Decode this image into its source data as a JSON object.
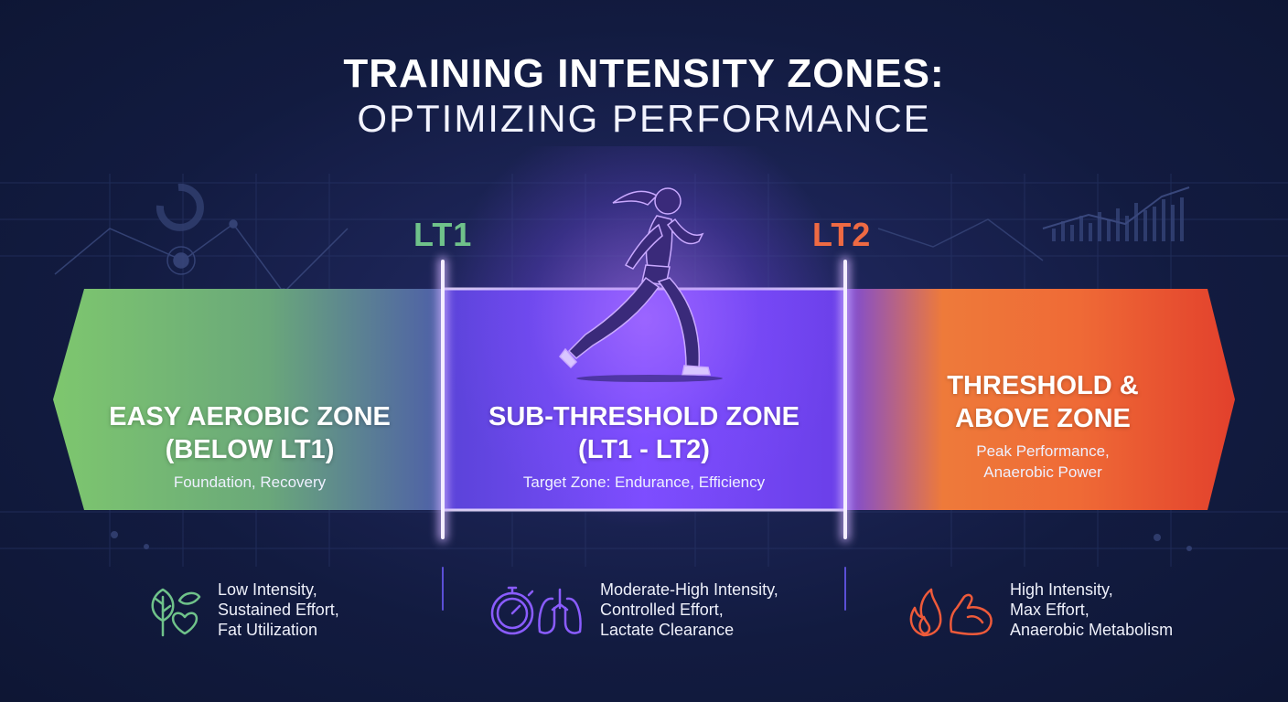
{
  "title": {
    "line1": "TRAINING INTENSITY ZONES:",
    "line2": "OPTIMIZING PERFORMANCE"
  },
  "markers": {
    "lt1": "LT1",
    "lt2": "LT2"
  },
  "zones": [
    {
      "title_line1": "EASY AEROBIC ZONE",
      "title_line2": "(BELOW LT1)",
      "subtitle_line1": "Foundation, Recovery",
      "subtitle_line2": "",
      "color": "#7fc46f"
    },
    {
      "title_line1": "SUB-THRESHOLD ZONE",
      "title_line2": "(LT1 - LT2)",
      "subtitle_line1": "Target Zone: Endurance, Efficiency",
      "subtitle_line2": "",
      "color": "#7a4dff"
    },
    {
      "title_line1": "THRESHOLD &",
      "title_line2": "ABOVE ZONE",
      "subtitle_line1": "Peak Performance,",
      "subtitle_line2": "Anaerobic Power",
      "color": "#e8452c"
    }
  ],
  "features": [
    {
      "icon": "leaf-heart-icon",
      "lines": [
        "Low Intensity,",
        "Sustained Effort,",
        "Fat Utilization"
      ],
      "color": "#6fc28a"
    },
    {
      "icon": "stopwatch-lungs-icon",
      "lines": [
        "Moderate-High Intensity,",
        "Controlled Effort,",
        "Lactate Clearance"
      ],
      "color": "#8a5cff"
    },
    {
      "icon": "flame-muscle-icon",
      "lines": [
        "High Intensity,",
        "Max Effort,",
        "Anaerobic Metabolism"
      ],
      "color": "#ee5a3a"
    }
  ]
}
